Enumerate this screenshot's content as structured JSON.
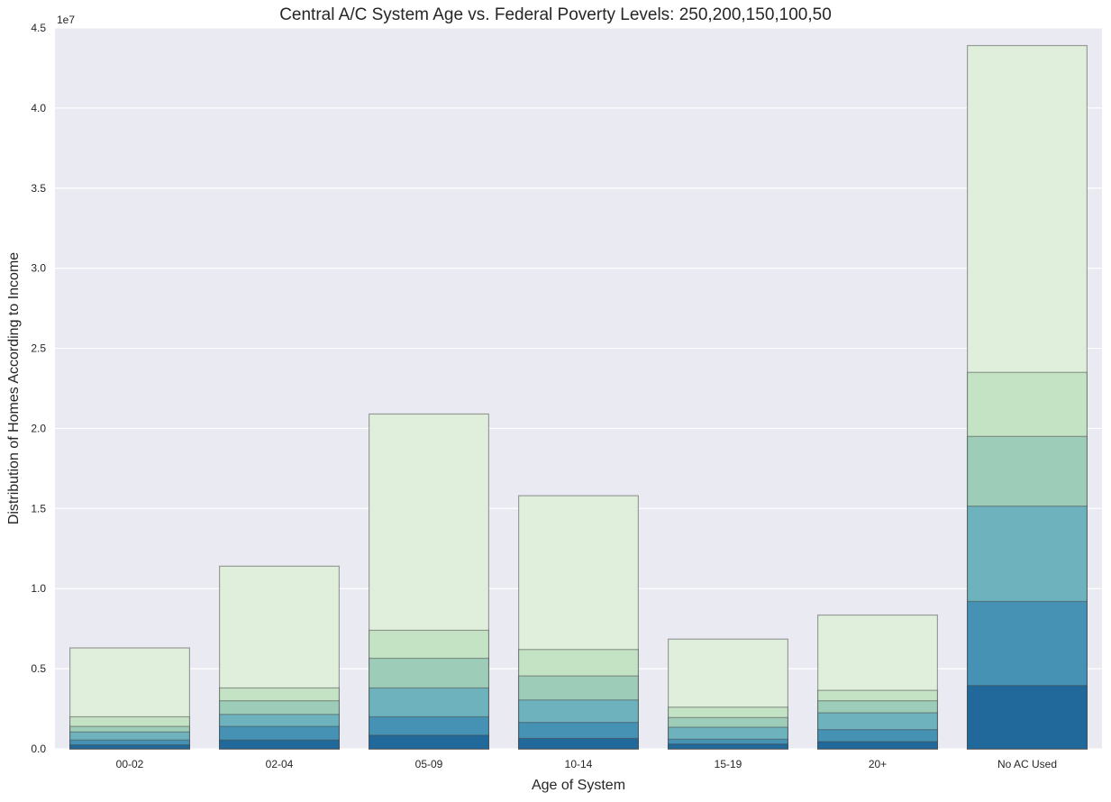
{
  "chart_data": {
    "type": "bar",
    "title": "Central A/C System Age vs. Federal Poverty Levels: 250,200,150,100,50",
    "xlabel": "Age of System",
    "ylabel": "Distribution of Homes According to Income",
    "y_offset_label": "1e7",
    "y_scale": 10000000,
    "ylim": [
      0,
      45000000
    ],
    "y_ticks": [
      0,
      5000000,
      10000000,
      15000000,
      20000000,
      25000000,
      30000000,
      35000000,
      40000000,
      45000000
    ],
    "y_tick_labels": [
      "0.0",
      "0.5",
      "1.0",
      "1.5",
      "2.0",
      "2.5",
      "3.0",
      "3.5",
      "4.0",
      "4.5"
    ],
    "categories": [
      "00-02",
      "02-04",
      "05-09",
      "10-14",
      "15-19",
      "20+",
      "No AC Used"
    ],
    "grid": true,
    "style": "overlapping",
    "series": [
      {
        "color": "#e0efdc",
        "values": [
          6300000,
          11400000,
          20900000,
          15800000,
          6850000,
          8350000,
          43900000
        ]
      },
      {
        "color": "#c4e3c5",
        "values": [
          2000000,
          3800000,
          7400000,
          6200000,
          2600000,
          3650000,
          23500000
        ]
      },
      {
        "color": "#9dcdb8",
        "values": [
          1400000,
          3000000,
          5650000,
          4550000,
          1950000,
          3000000,
          19500000
        ]
      },
      {
        "color": "#6db2bd",
        "values": [
          1050000,
          2150000,
          3800000,
          3050000,
          1350000,
          2250000,
          15150000
        ]
      },
      {
        "color": "#4592b5",
        "values": [
          550000,
          1400000,
          2000000,
          1650000,
          600000,
          1200000,
          9200000
        ]
      },
      {
        "color": "#21699a",
        "values": [
          250000,
          550000,
          850000,
          650000,
          300000,
          450000,
          3950000
        ]
      }
    ]
  }
}
